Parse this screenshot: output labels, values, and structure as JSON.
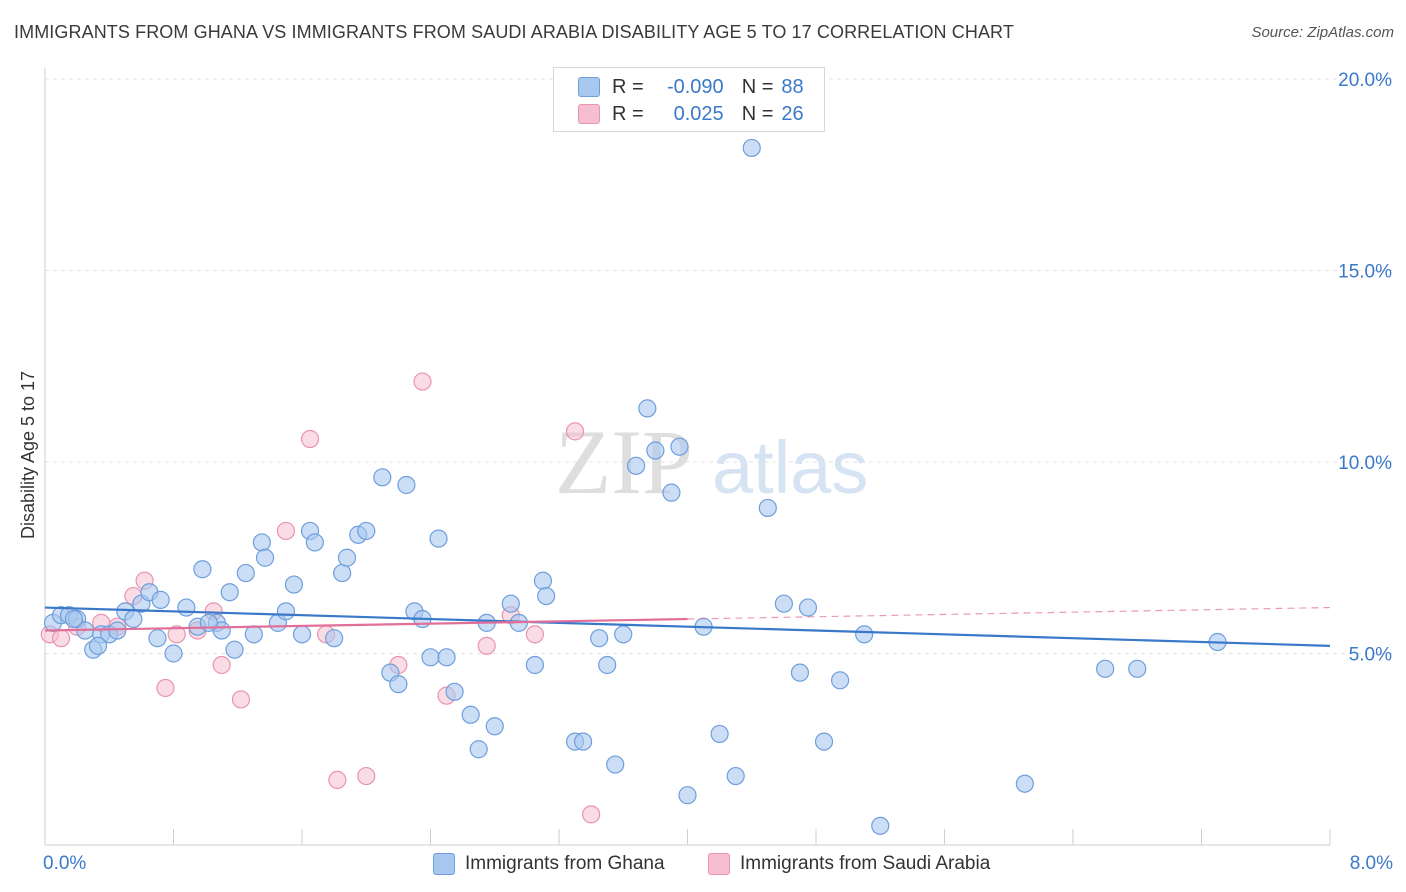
{
  "header": {
    "title": "IMMIGRANTS FROM GHANA VS IMMIGRANTS FROM SAUDI ARABIA DISABILITY AGE 5 TO 17 CORRELATION CHART",
    "source": "Source: ZipAtlas.com"
  },
  "watermark": {
    "zip": "ZIP",
    "atlas": "atlas"
  },
  "legend": {
    "rows": [
      {
        "r_label": "R =",
        "r_value": "-0.090",
        "n_label": "N =",
        "n_value": "88"
      },
      {
        "r_label": "R =",
        "r_value": "0.025",
        "n_label": "N =",
        "n_value": "26"
      }
    ]
  },
  "colors": {
    "ghana_fill": "#a9c8ef",
    "ghana_stroke": "#6e9fdc",
    "ghana_line": "#3a78c9",
    "saudi_fill": "#f6bfd0",
    "saudi_stroke": "#e994b1",
    "saudi_line": "#e0709a",
    "grid": "#e3e3e3",
    "axis_text": "#3a78c9"
  },
  "chart_data": {
    "type": "scatter",
    "title": "IMMIGRANTS FROM GHANA VS IMMIGRANTS FROM SAUDI ARABIA DISABILITY AGE 5 TO 17 CORRELATION CHART",
    "xlabel": "",
    "ylabel": "Disability Age 5 to 17",
    "xlim": [
      0,
      8
    ],
    "ylim": [
      0,
      20
    ],
    "x_tick_labels": [
      "0.0%",
      "8.0%"
    ],
    "y_ticks": [
      5,
      10,
      15,
      20
    ],
    "y_tick_labels": [
      "5.0%",
      "10.0%",
      "15.0%",
      "20.0%"
    ],
    "grid": true,
    "legend_position": "top-center",
    "series": [
      {
        "name": "Immigrants from Ghana",
        "r": -0.09,
        "n": 88,
        "trend": {
          "x": [
            0,
            8
          ],
          "y": [
            6.2,
            5.2
          ]
        },
        "points": [
          [
            0.05,
            5.8
          ],
          [
            0.1,
            6.0
          ],
          [
            0.15,
            6.0
          ],
          [
            0.2,
            5.9
          ],
          [
            0.25,
            5.6
          ],
          [
            0.3,
            5.1
          ],
          [
            0.35,
            5.5
          ],
          [
            0.4,
            5.5
          ],
          [
            0.45,
            5.6
          ],
          [
            0.5,
            6.1
          ],
          [
            0.55,
            5.9
          ],
          [
            0.6,
            6.3
          ],
          [
            0.65,
            6.6
          ],
          [
            0.7,
            5.4
          ],
          [
            0.72,
            6.4
          ],
          [
            0.8,
            5.0
          ],
          [
            0.88,
            6.2
          ],
          [
            0.95,
            5.7
          ],
          [
            0.98,
            7.2
          ],
          [
            1.07,
            5.8
          ],
          [
            1.1,
            5.6
          ],
          [
            1.15,
            6.6
          ],
          [
            1.18,
            5.1
          ],
          [
            1.25,
            7.1
          ],
          [
            1.3,
            5.5
          ],
          [
            1.35,
            7.9
          ],
          [
            1.37,
            7.5
          ],
          [
            1.45,
            5.8
          ],
          [
            1.5,
            6.1
          ],
          [
            1.55,
            6.8
          ],
          [
            1.6,
            5.5
          ],
          [
            1.65,
            8.2
          ],
          [
            1.68,
            7.9
          ],
          [
            1.8,
            5.4
          ],
          [
            1.85,
            7.1
          ],
          [
            1.88,
            7.5
          ],
          [
            1.95,
            8.1
          ],
          [
            2.0,
            8.2
          ],
          [
            2.1,
            9.6
          ],
          [
            2.15,
            4.5
          ],
          [
            2.2,
            4.2
          ],
          [
            2.25,
            9.4
          ],
          [
            2.3,
            6.1
          ],
          [
            2.35,
            5.9
          ],
          [
            2.4,
            4.9
          ],
          [
            2.45,
            8.0
          ],
          [
            2.5,
            4.9
          ],
          [
            2.55,
            4.0
          ],
          [
            2.65,
            3.4
          ],
          [
            2.7,
            2.5
          ],
          [
            2.8,
            3.1
          ],
          [
            2.75,
            5.8
          ],
          [
            2.9,
            6.3
          ],
          [
            2.95,
            5.8
          ],
          [
            3.05,
            4.7
          ],
          [
            3.1,
            6.9
          ],
          [
            3.12,
            6.5
          ],
          [
            3.3,
            2.7
          ],
          [
            3.35,
            2.7
          ],
          [
            3.45,
            5.4
          ],
          [
            3.5,
            4.7
          ],
          [
            3.55,
            2.1
          ],
          [
            3.6,
            5.5
          ],
          [
            3.68,
            9.9
          ],
          [
            3.75,
            11.4
          ],
          [
            3.8,
            10.3
          ],
          [
            3.9,
            9.2
          ],
          [
            3.95,
            10.4
          ],
          [
            4.0,
            1.3
          ],
          [
            4.1,
            5.7
          ],
          [
            4.2,
            2.9
          ],
          [
            4.3,
            1.8
          ],
          [
            4.4,
            18.2
          ],
          [
            4.5,
            8.8
          ],
          [
            4.6,
            6.3
          ],
          [
            4.7,
            4.5
          ],
          [
            4.75,
            6.2
          ],
          [
            4.85,
            2.7
          ],
          [
            4.95,
            4.3
          ],
          [
            5.1,
            5.5
          ],
          [
            5.2,
            0.5
          ],
          [
            6.1,
            1.6
          ],
          [
            6.6,
            4.6
          ],
          [
            6.8,
            4.6
          ],
          [
            7.3,
            5.3
          ],
          [
            0.18,
            5.9
          ],
          [
            1.02,
            5.8
          ],
          [
            0.33,
            5.2
          ]
        ]
      },
      {
        "name": "Immigrants from Saudi Arabia",
        "r": 0.025,
        "n": 26,
        "trend": {
          "x": [
            0,
            4
          ],
          "y": [
            5.6,
            5.9
          ]
        },
        "trend_extension": {
          "x": [
            4,
            8
          ],
          "y": [
            5.9,
            6.2
          ]
        },
        "points": [
          [
            0.03,
            5.5
          ],
          [
            0.1,
            5.4
          ],
          [
            0.2,
            5.7
          ],
          [
            0.35,
            5.8
          ],
          [
            0.45,
            5.7
          ],
          [
            0.55,
            6.5
          ],
          [
            0.62,
            6.9
          ],
          [
            0.75,
            4.1
          ],
          [
            0.82,
            5.5
          ],
          [
            0.95,
            5.6
          ],
          [
            1.05,
            6.1
          ],
          [
            1.1,
            4.7
          ],
          [
            1.22,
            3.8
          ],
          [
            1.5,
            8.2
          ],
          [
            1.65,
            10.6
          ],
          [
            1.75,
            5.5
          ],
          [
            1.82,
            1.7
          ],
          [
            2.0,
            1.8
          ],
          [
            2.2,
            4.7
          ],
          [
            2.35,
            12.1
          ],
          [
            2.5,
            3.9
          ],
          [
            2.75,
            5.2
          ],
          [
            2.9,
            6.0
          ],
          [
            3.05,
            5.5
          ],
          [
            3.3,
            10.8
          ],
          [
            3.4,
            0.8
          ]
        ]
      }
    ]
  },
  "bottom_legend": {
    "items": [
      {
        "label": "Immigrants from Ghana"
      },
      {
        "label": "Immigrants from Saudi Arabia"
      }
    ]
  }
}
